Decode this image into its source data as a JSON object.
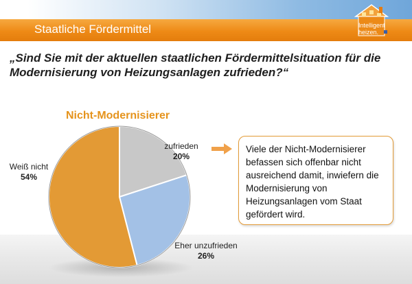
{
  "header": {
    "title": "Staatliche Fördermittel",
    "logo_line1": "Intelligent",
    "logo_line2": "heizen."
  },
  "question": "„Sind Sie mit der aktuellen staatlichen Fördermittelsituation für die Modernisierung von Heizungsanlagen zufrieden?“",
  "callout": "Viele der Nicht-Modernisierer befassen sich offenbar nicht ausreichend damit, inwiefern die Modernisierung von Heizungsanlagen vom Staat gefördert wird.",
  "chart_data": {
    "type": "pie",
    "title": "Nicht-Modernisierer",
    "slices": [
      {
        "label": "zufrieden",
        "value": 20,
        "value_label": "20%",
        "color": "#c8c8c8"
      },
      {
        "label": "Eher unzufrieden",
        "value": 26,
        "value_label": "26%",
        "color": "#a3c1e6"
      },
      {
        "label": "Weiß nicht",
        "value": 54,
        "value_label": "54%",
        "color": "#e39a35"
      }
    ]
  },
  "colors": {
    "accent": "#ee8a16",
    "title_text": "#e5931c"
  }
}
